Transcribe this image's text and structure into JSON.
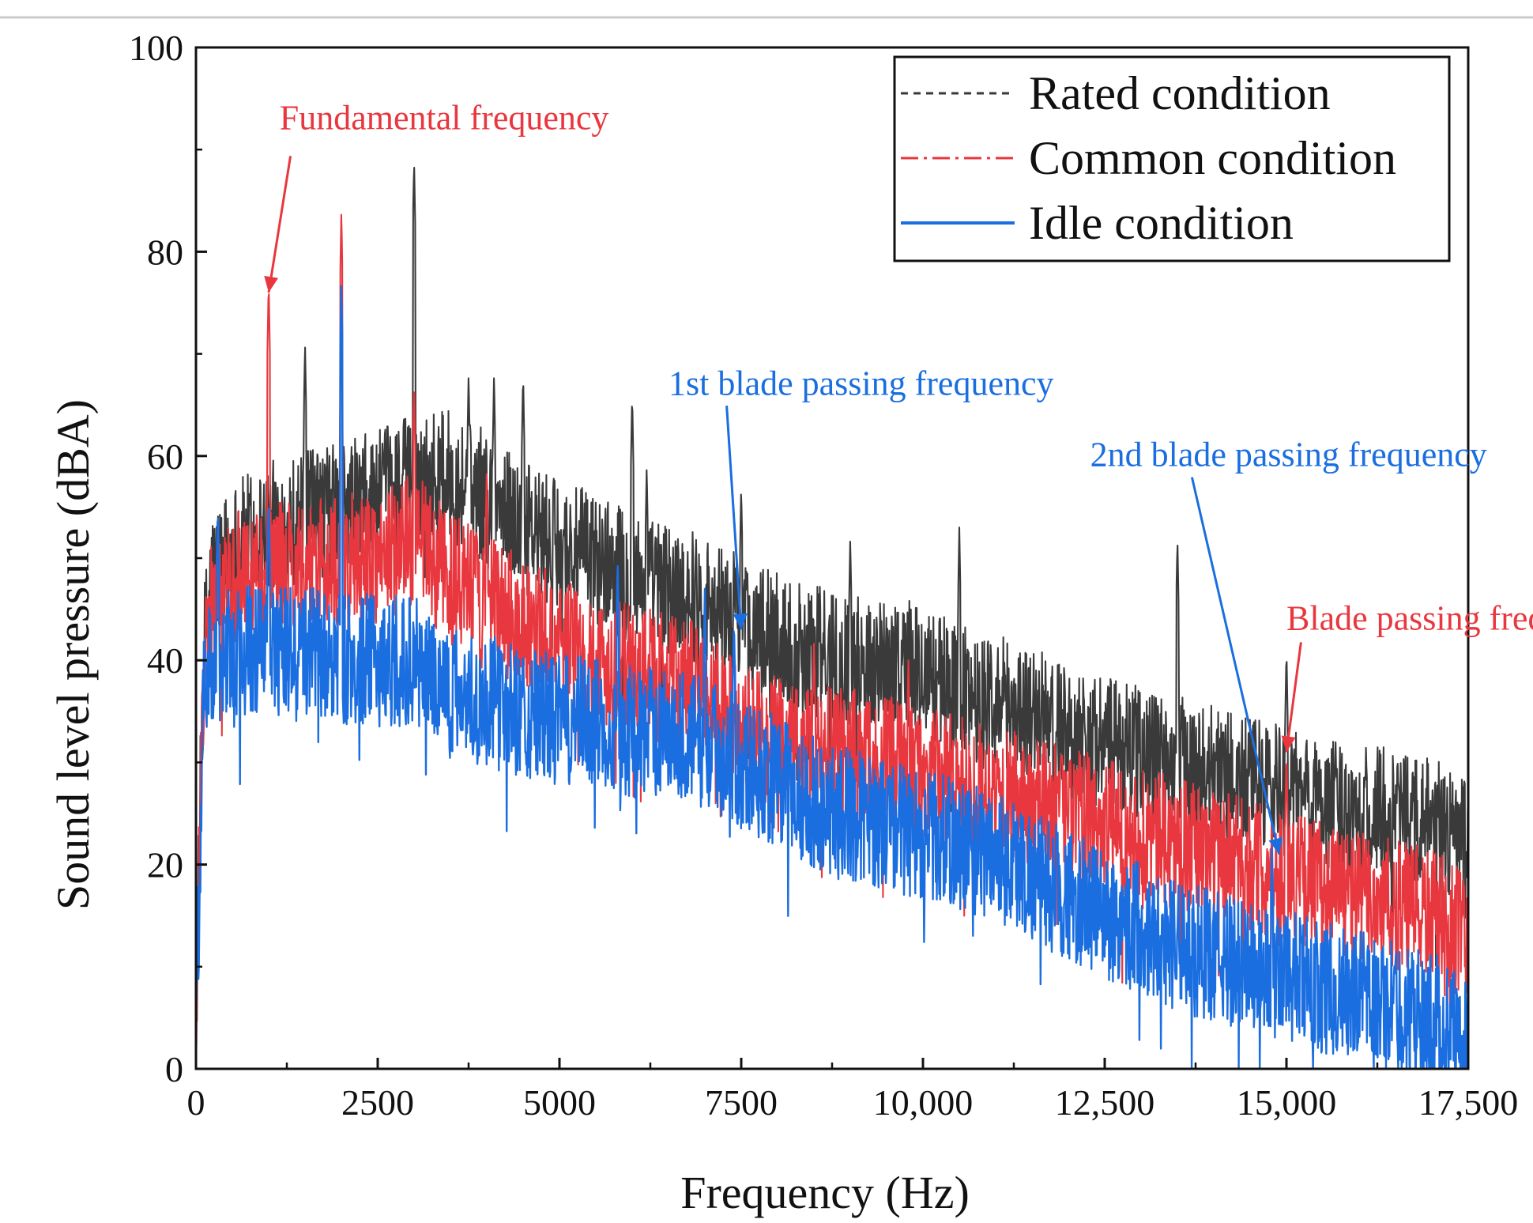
{
  "chart_data": {
    "type": "line",
    "title": "",
    "xlabel": "Frequency (Hz)",
    "ylabel": "Sound level pressure (dBA)",
    "xlim": [
      0,
      17500
    ],
    "ylim": [
      0,
      100
    ],
    "x_ticks": [
      0,
      2500,
      5000,
      7500,
      10000,
      12500,
      15000,
      17500
    ],
    "x_tick_labels": [
      "0",
      "2500",
      "5000",
      "7500",
      "10,000",
      "12,500",
      "15,000",
      "17,500"
    ],
    "y_ticks": [
      0,
      20,
      40,
      60,
      80,
      100
    ],
    "y_tick_labels": [
      "0",
      "20",
      "40",
      "60",
      "80",
      "100"
    ],
    "legend_position": "top-right",
    "series": [
      {
        "name": "Rated condition",
        "style": "dashed",
        "color": "#3a3a3a",
        "envelope_x": [
          0,
          100,
          200,
          500,
          1000,
          1500,
          2000,
          2500,
          3000,
          3500,
          4000,
          4500,
          5000,
          5500,
          6000,
          6500,
          7000,
          7500,
          8000,
          8500,
          9000,
          9500,
          10000,
          10500,
          11000,
          11500,
          12000,
          12500,
          13000,
          13500,
          14000,
          14500,
          15000,
          15500,
          16000,
          16500,
          17000,
          17500
        ],
        "envelope_y": [
          5,
          40,
          48,
          51,
          53,
          54,
          55,
          56,
          58,
          58,
          56,
          53,
          51,
          50,
          48,
          47,
          46,
          44,
          42,
          41,
          40,
          40,
          39,
          37,
          36,
          35,
          33,
          32,
          31,
          30,
          29,
          28,
          27,
          26,
          25,
          25,
          24,
          22
        ],
        "peaks": [
          {
            "x": 1500,
            "y": 71
          },
          {
            "x": 2000,
            "y": 72
          },
          {
            "x": 3000,
            "y": 89
          },
          {
            "x": 3750,
            "y": 68
          },
          {
            "x": 4100,
            "y": 68
          },
          {
            "x": 4500,
            "y": 68
          },
          {
            "x": 6000,
            "y": 66
          },
          {
            "x": 6200,
            "y": 59
          },
          {
            "x": 7500,
            "y": 57
          },
          {
            "x": 9000,
            "y": 52
          },
          {
            "x": 10500,
            "y": 53
          },
          {
            "x": 13500,
            "y": 52
          },
          {
            "x": 15000,
            "y": 41
          }
        ]
      },
      {
        "name": "Common condition",
        "style": "dash-dot",
        "color": "#e8373e",
        "envelope_x": [
          0,
          100,
          200,
          500,
          1000,
          1500,
          2000,
          2500,
          3000,
          3500,
          4000,
          4500,
          5000,
          5500,
          6000,
          6500,
          7000,
          7500,
          8000,
          8500,
          9000,
          9500,
          10000,
          10500,
          11000,
          11500,
          12000,
          12500,
          13000,
          13500,
          14000,
          14500,
          15000,
          15500,
          16000,
          16500,
          17000,
          17500
        ],
        "envelope_y": [
          4,
          38,
          46,
          48,
          49,
          49,
          50,
          50,
          52,
          48,
          46,
          44,
          42,
          40,
          39,
          38,
          37,
          33,
          32,
          31,
          31,
          30,
          29,
          28,
          27,
          26,
          25,
          24,
          23,
          22,
          21,
          20,
          19,
          18,
          17,
          16,
          15,
          13
        ],
        "peaks": [
          {
            "x": 1000,
            "y": 77
          },
          {
            "x": 2000,
            "y": 84
          },
          {
            "x": 3000,
            "y": 67
          },
          {
            "x": 4000,
            "y": 59
          },
          {
            "x": 8500,
            "y": 42
          },
          {
            "x": 9800,
            "y": 40
          },
          {
            "x": 15000,
            "y": 31
          }
        ]
      },
      {
        "name": "Idle condition",
        "style": "solid",
        "color": "#1a6ee0",
        "envelope_x": [
          0,
          100,
          200,
          500,
          1000,
          1500,
          2000,
          2500,
          3000,
          3500,
          4000,
          4500,
          5000,
          5500,
          6000,
          6500,
          7000,
          7500,
          8000,
          8500,
          9000,
          9500,
          10000,
          10500,
          11000,
          11500,
          12000,
          12500,
          13000,
          13500,
          14000,
          14500,
          15000,
          15500,
          16000,
          16500,
          17000,
          17500
        ],
        "envelope_y": [
          3,
          35,
          40,
          41,
          41,
          41,
          40,
          40,
          40,
          37,
          36,
          35,
          34,
          34,
          33,
          33,
          32,
          30,
          28,
          26,
          25,
          24,
          23,
          22,
          21,
          19,
          17,
          15,
          14,
          12,
          11,
          10,
          9,
          8,
          7,
          6,
          5,
          3
        ],
        "peaks": [
          {
            "x": 300,
            "y": 55
          },
          {
            "x": 1000,
            "y": 56
          },
          {
            "x": 2000,
            "y": 77
          },
          {
            "x": 5800,
            "y": 50
          },
          {
            "x": 7000,
            "y": 47
          },
          {
            "x": 7400,
            "y": 44
          },
          {
            "x": 14800,
            "y": 22
          }
        ]
      }
    ],
    "annotations": [
      {
        "text": "Fundamental frequency",
        "color": "#e8373e",
        "text_x": 1150,
        "text_y": 92,
        "arrow_to": [
          1000,
          76
        ]
      },
      {
        "text": "1st blade passing frequency",
        "color": "#1a6ee0",
        "text_x": 6500,
        "text_y": 66,
        "arrow_to": [
          7500,
          43
        ]
      },
      {
        "text": "2nd blade passing frequency",
        "color": "#1a6ee0",
        "text_x": 12300,
        "text_y": 59,
        "arrow_to": [
          14900,
          21
        ]
      },
      {
        "text": "Blade passing frequency",
        "color": "#e8373e",
        "text_x": 15000,
        "text_y": 43,
        "arrow_to": [
          15000,
          31
        ]
      }
    ]
  }
}
